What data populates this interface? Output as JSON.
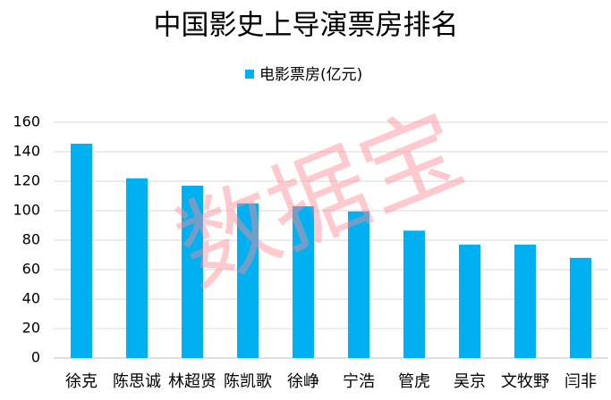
{
  "chart_data": {
    "type": "bar",
    "title": "中国影史上导演票房排名",
    "categories": [
      "徐克",
      "陈思诚",
      "林超贤",
      "陈凯歌",
      "徐峥",
      "宁浩",
      "管虎",
      "吴京",
      "文牧野",
      "闫非"
    ],
    "series": [
      {
        "name": "电影票房(亿元)",
        "color": "#00b0f0",
        "values": [
          145.5,
          122,
          117,
          105,
          103,
          99.5,
          86.5,
          77,
          77,
          68
        ]
      }
    ],
    "ylim": [
      0,
      160
    ],
    "yticks": [
      0,
      20,
      40,
      60,
      80,
      100,
      120,
      140,
      160
    ],
    "grid": true,
    "legend": "top"
  },
  "watermark": "数据宝"
}
